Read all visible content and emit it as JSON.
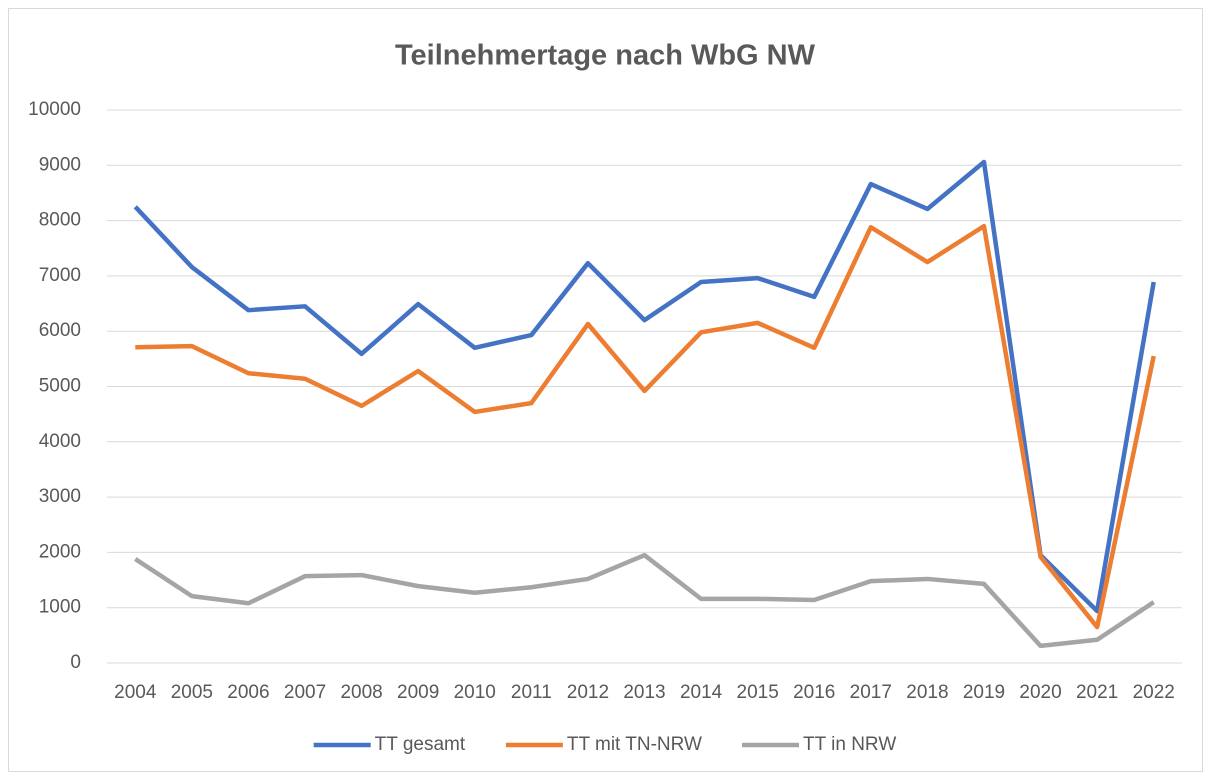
{
  "chart_data": {
    "type": "line",
    "title": "Teilnehmertage nach WbG NW",
    "categories": [
      "2004",
      "2005",
      "2006",
      "2007",
      "2008",
      "2009",
      "2010",
      "2011",
      "2012",
      "2013",
      "2014",
      "2015",
      "2016",
      "2017",
      "2018",
      "2019",
      "2020",
      "2021",
      "2022"
    ],
    "series": [
      {
        "name": "TT gesamt",
        "color": "#4472c4",
        "values": [
          8250,
          7160,
          6380,
          6450,
          5590,
          6490,
          5700,
          5930,
          7230,
          6200,
          6890,
          6960,
          6620,
          8660,
          8210,
          9060,
          1950,
          940,
          6890
        ]
      },
      {
        "name": "TT mit TN-NRW",
        "color": "#ed7d31",
        "values": [
          5710,
          5730,
          5240,
          5140,
          4650,
          5280,
          4540,
          4700,
          6130,
          4920,
          5980,
          6150,
          5700,
          7880,
          7250,
          7900,
          1920,
          650,
          5550
        ]
      },
      {
        "name": "TT in NRW",
        "color": "#a5a5a5",
        "values": [
          1880,
          1210,
          1080,
          1570,
          1590,
          1390,
          1270,
          1370,
          1520,
          1950,
          1160,
          1160,
          1140,
          1480,
          1520,
          1430,
          310,
          420,
          1100
        ]
      }
    ],
    "ylim": [
      0,
      10000
    ],
    "yticks": [
      0,
      1000,
      2000,
      3000,
      4000,
      5000,
      6000,
      7000,
      8000,
      9000,
      10000
    ],
    "grid": true,
    "legend": "bottom"
  }
}
